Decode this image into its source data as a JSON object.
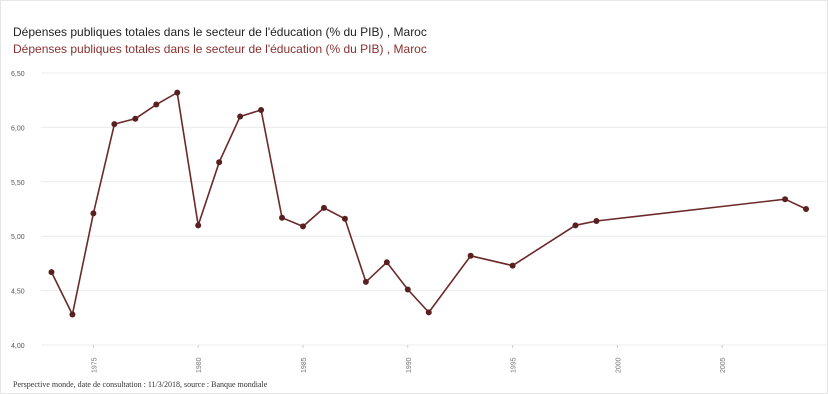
{
  "chart_data": {
    "type": "line",
    "title": "Dépenses publiques totales dans le secteur de l'éducation (% du PIB) , Maroc",
    "legend": "Dépenses publiques totales dans le secteur de l'éducation (% du PIB) , Maroc",
    "legend_placement": "top-left",
    "grid": "horizontal",
    "colors": {
      "line": "#6b2a2a",
      "point": "#5a2020",
      "legend_text": "#8a3030"
    },
    "ylim": [
      4.0,
      6.5
    ],
    "y_ticks": [
      "4,00",
      "4,50",
      "5,00",
      "5,50",
      "6,00",
      "6,50"
    ],
    "y_tick_values": [
      4.0,
      4.5,
      5.0,
      5.5,
      6.0,
      6.5
    ],
    "xlim": [
      1972.5,
      2010
    ],
    "x_ticks": [
      "1975",
      "1980",
      "1985",
      "1990",
      "1995",
      "2000",
      "2005"
    ],
    "x_tick_values": [
      1975,
      1980,
      1985,
      1990,
      1995,
      2000,
      2005
    ],
    "series": [
      {
        "x": [
          1973,
          1974,
          1975,
          1976,
          1977,
          1978,
          1979,
          1980,
          1981,
          1982,
          1983,
          1984,
          1985,
          1986,
          1987,
          1988,
          1989,
          1990,
          1991,
          1993,
          1995,
          1998,
          1999,
          2008,
          2009
        ],
        "values": [
          4.67,
          4.28,
          5.21,
          6.03,
          6.08,
          6.21,
          6.32,
          5.1,
          5.68,
          6.1,
          6.16,
          5.17,
          5.09,
          5.26,
          5.16,
          4.58,
          4.76,
          4.51,
          4.3,
          4.82,
          4.73,
          5.1,
          5.14,
          5.34,
          5.25
        ]
      }
    ]
  },
  "footer": "Perspective monde, date de consultation : 11/3/2018, source : Banque mondiale"
}
